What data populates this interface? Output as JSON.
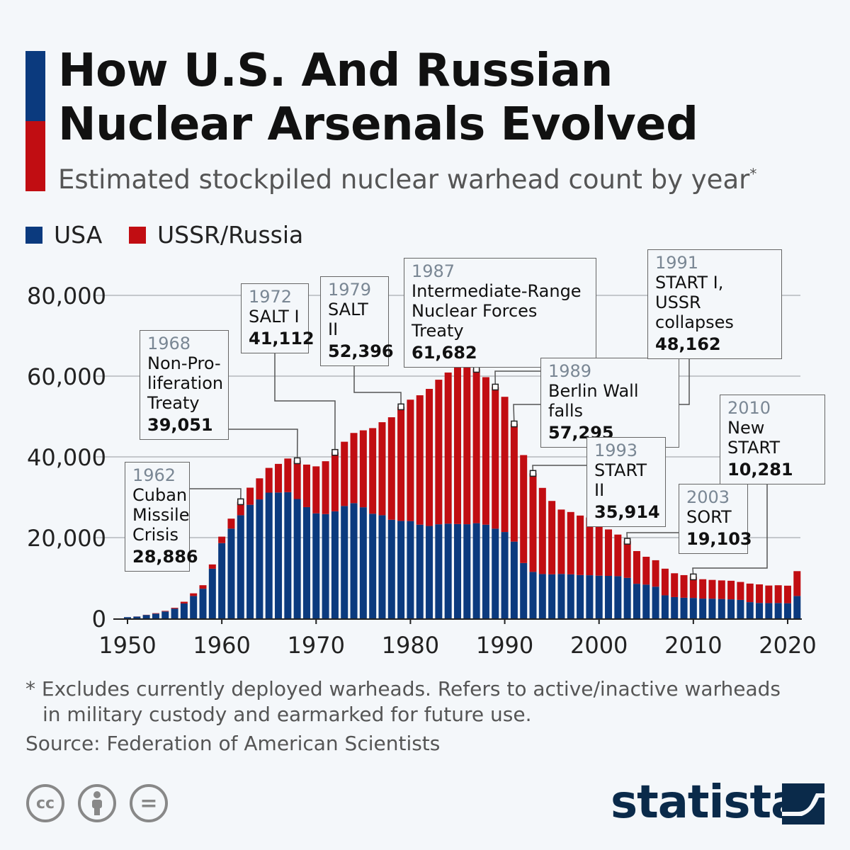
{
  "title_line1": "How U.S. And Russian",
  "title_line2": "Nuclear Arsenals Evolved",
  "subtitle": "Estimated stockpiled nuclear warhead count by year",
  "subtitle_mark": "*",
  "colors": {
    "usa": "#0b3a7e",
    "russia": "#c10d12",
    "title_bar_blue": "#0b3a7e",
    "title_bar_red": "#c10d12"
  },
  "chart_data": {
    "type": "bar",
    "stacked": true,
    "legend_placement": "top-left",
    "grid": true,
    "ylim": [
      0,
      80000
    ],
    "y_ticks": [
      "0",
      "20,000",
      "40,000",
      "60,000",
      "80,000"
    ],
    "x_ticks": [
      "1950",
      "1960",
      "1970",
      "1980",
      "1990",
      "2000",
      "2010",
      "2020"
    ],
    "years": [
      1950,
      1951,
      1952,
      1953,
      1954,
      1955,
      1956,
      1957,
      1958,
      1959,
      1960,
      1961,
      1962,
      1963,
      1964,
      1965,
      1966,
      1967,
      1968,
      1969,
      1970,
      1971,
      1972,
      1973,
      1974,
      1975,
      1976,
      1977,
      1978,
      1979,
      1980,
      1981,
      1982,
      1983,
      1984,
      1985,
      1986,
      1987,
      1988,
      1989,
      1990,
      1991,
      1992,
      1993,
      1994,
      1995,
      1996,
      1997,
      1998,
      1999,
      2000,
      2001,
      2002,
      2003,
      2004,
      2005,
      2006,
      2007,
      2008,
      2009,
      2010,
      2011,
      2012,
      2013,
      2014,
      2015,
      2016,
      2017,
      2018,
      2019,
      2020,
      2021
    ],
    "series": [
      {
        "name": "USA",
        "values": [
          299,
          438,
          841,
          1169,
          1703,
          2422,
          3692,
          5543,
          7345,
          12298,
          18638,
          22229,
          25540,
          28133,
          29463,
          31139,
          31175,
          31255,
          29561,
          27552,
          26008,
          25830,
          26516,
          27835,
          28537,
          27519,
          25914,
          25542,
          24418,
          24138,
          24104,
          23208,
          22886,
          23305,
          23459,
          23368,
          23317,
          23575,
          23205,
          22217,
          21392,
          19008,
          13708,
          11511,
          10979,
          10904,
          11011,
          10903,
          10732,
          10685,
          10577,
          10526,
          10457,
          10027,
          8570,
          8360,
          7853,
          5709,
          5273,
          5113,
          5066,
          4897,
          4881,
          4804,
          4717,
          4571,
          4018,
          3822,
          3785,
          3805,
          3750,
          5550
        ]
      },
      {
        "name": "USSR/Russia",
        "values": [
          5,
          25,
          50,
          120,
          150,
          200,
          426,
          660,
          869,
          1060,
          1605,
          2471,
          3346,
          4238,
          5221,
          6129,
          7089,
          8339,
          9490,
          10538,
          11643,
          13092,
          14596,
          15915,
          17385,
          19055,
          21205,
          23044,
          25393,
          28258,
          30062,
          32049,
          33952,
          35804,
          37431,
          39197,
          40159,
          38107,
          36538,
          35078,
          33486,
          29154,
          26734,
          24403,
          21339,
          18179,
          15942,
          15442,
          14732,
          14300,
          12300,
          11500,
          10300,
          9076,
          8100,
          6900,
          6550,
          6600,
          5900,
          5600,
          5215,
          4800,
          4650,
          4600,
          4600,
          4450,
          4600,
          4600,
          4350,
          4400,
          4350,
          6150
        ]
      }
    ],
    "annotations": [
      {
        "year": "1962",
        "label": "Cuban Missile Crisis",
        "lines": [
          "Cuban",
          "Missile",
          "Crisis"
        ],
        "value": "28,886"
      },
      {
        "year": "1968",
        "label": "Non-Proliferation Treaty",
        "lines": [
          "Non-Pro-",
          "liferation",
          "Treaty"
        ],
        "value": "39,051"
      },
      {
        "year": "1972",
        "label": "SALT I",
        "lines": [
          "SALT I"
        ],
        "value": "41,112"
      },
      {
        "year": "1979",
        "label": "SALT II",
        "lines": [
          "SALT II"
        ],
        "value": "52,396"
      },
      {
        "year": "1987",
        "label": "Intermediate-Range Nuclear Forces Treaty",
        "lines": [
          "Intermediate-Range",
          "Nuclear Forces Treaty"
        ],
        "value": "61,682"
      },
      {
        "year": "1989",
        "label": "Berlin Wall falls",
        "lines": [
          "Berlin Wall falls"
        ],
        "value": "57,295"
      },
      {
        "year": "1991",
        "label": "START I, USSR collapses",
        "lines": [
          "START I,",
          "USSR collapses"
        ],
        "value": "48,162"
      },
      {
        "year": "1993",
        "label": "START II",
        "lines": [
          "START II"
        ],
        "value": "35,914"
      },
      {
        "year": "2003",
        "label": "SORT",
        "lines": [
          "SORT"
        ],
        "value": "19,103"
      },
      {
        "year": "2010",
        "label": "New START",
        "lines": [
          "New START"
        ],
        "value": "10,281"
      }
    ]
  },
  "legend": {
    "usa": "USA",
    "russia": "USSR/Russia"
  },
  "footnote_line1": "* Excludes currently deployed warheads. Refers to active/inactive warheads",
  "footnote_line2": "in military custody and earmarked for future use.",
  "source": "Source: Federation of American Scientists",
  "license_icons": [
    "cc-icon",
    "attribution-icon",
    "no-derivatives-icon"
  ],
  "license_text": {
    "cc": "cc",
    "nd": "="
  },
  "logo": "statista"
}
